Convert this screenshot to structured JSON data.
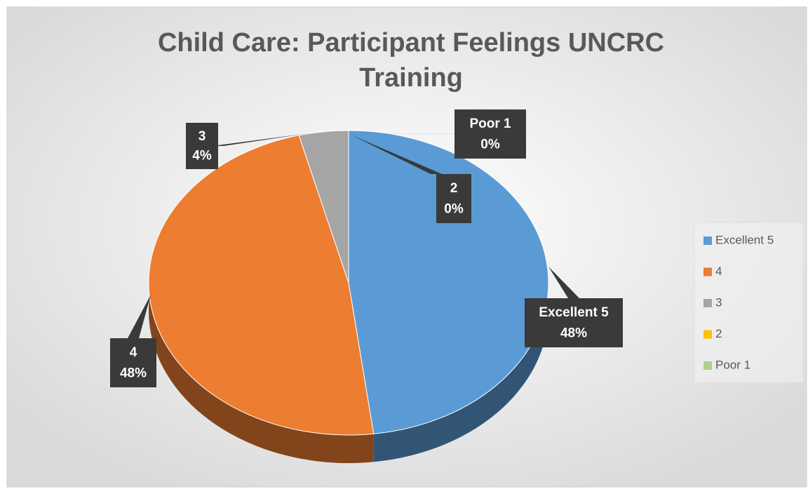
{
  "chart_data": {
    "type": "pie",
    "title": "Child Care: Participant  Feelings UNCRC Training",
    "categories": [
      "Excellent 5",
      "4",
      "3",
      "2",
      "Poor  1"
    ],
    "values": [
      48,
      48,
      4,
      0,
      0
    ],
    "value_labels": [
      "48%",
      "48%",
      "4%",
      "0%",
      "0%"
    ],
    "colors": [
      "#5b9bd5",
      "#ed7d31",
      "#a5a5a5",
      "#ffc000",
      "#a9d18e"
    ],
    "legend": "right"
  }
}
